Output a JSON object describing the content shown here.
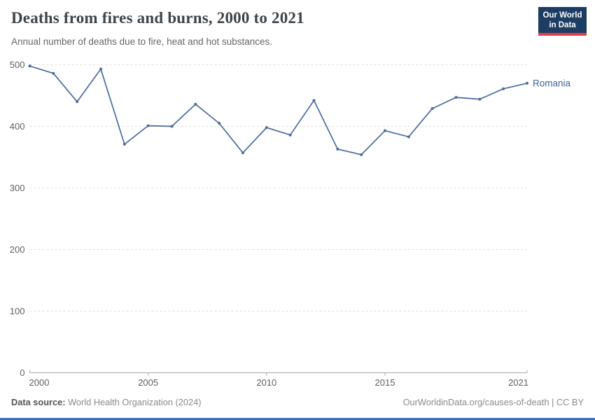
{
  "header": {
    "title": "Deaths from fires and burns, 2000 to 2021",
    "subtitle": "Annual number of deaths due to fire, heat and hot substances.",
    "logo_line1": "Our World",
    "logo_line2": "in Data"
  },
  "chart_data": {
    "type": "line",
    "title": "Deaths from fires and burns, 2000 to 2021",
    "xlabel": "",
    "ylabel": "",
    "x": [
      2000,
      2001,
      2002,
      2003,
      2004,
      2005,
      2006,
      2007,
      2008,
      2009,
      2010,
      2011,
      2012,
      2013,
      2014,
      2015,
      2016,
      2017,
      2018,
      2019,
      2020,
      2021
    ],
    "series": [
      {
        "name": "Romania",
        "values": [
          498,
          486,
          440,
          493,
          371,
          401,
          400,
          436,
          405,
          357,
          398,
          386,
          442,
          363,
          354,
          393,
          383,
          429,
          447,
          444,
          461,
          470
        ]
      }
    ],
    "xticks": [
      2000,
      2005,
      2010,
      2015,
      2021
    ],
    "yticks": [
      0,
      100,
      200,
      300,
      400,
      500
    ],
    "xlim": [
      2000,
      2021
    ],
    "ylim": [
      0,
      500
    ],
    "grid": "horizontal-dashed",
    "legend_position": "end-of-line-label",
    "line_color": "#4C6A9C",
    "marker": "circle",
    "end_label": "Romania",
    "end_label_color": "#3D649F"
  },
  "axes_text": {
    "tick_color": "#5f5f5f",
    "gridline_color": "#dedede",
    "axis_color": "#a9a9a9"
  },
  "footer": {
    "source_label": "Data source:",
    "source_value": " World Health Organization (2024)",
    "credit": "OurWorldinData.org/causes-of-death | CC BY"
  },
  "colors": {
    "logo_navy": "#1d3d63",
    "logo_red": "#dc3e4e",
    "accent_line": "#4C6A9C",
    "bottom_bar_blue": "#3b6fbf"
  }
}
